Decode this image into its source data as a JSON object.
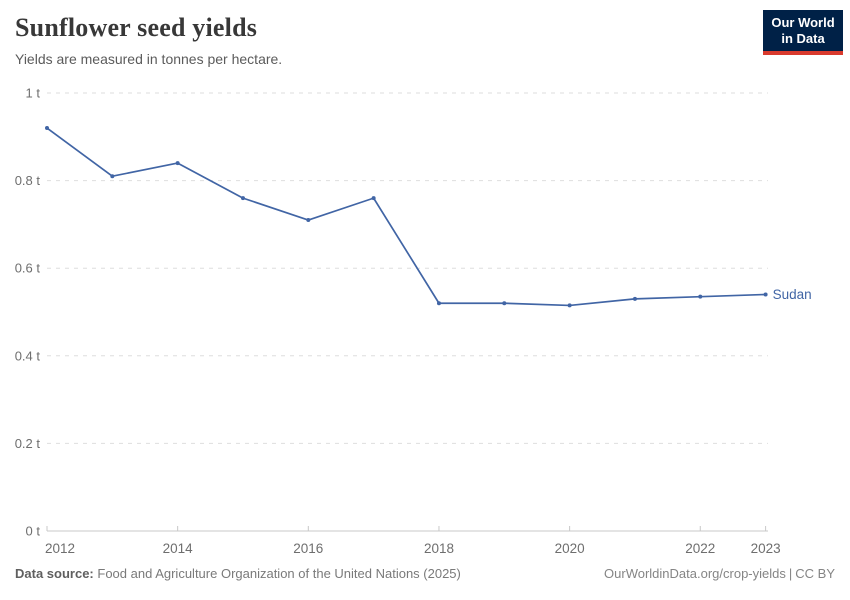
{
  "header": {
    "title": "Sunflower seed yields",
    "subtitle": "Yields are measured in tonnes per hectare.",
    "logo_line1": "Our World",
    "logo_line2": "in Data"
  },
  "chart_data": {
    "type": "line",
    "title": "Sunflower seed yields",
    "subtitle": "Yields are measured in tonnes per hectare.",
    "unit": "tonnes per hectare",
    "x": [
      2012,
      2013,
      2014,
      2015,
      2016,
      2017,
      2018,
      2019,
      2020,
      2021,
      2022,
      2023
    ],
    "series": [
      {
        "name": "Sudan",
        "values": [
          0.92,
          0.81,
          0.84,
          0.76,
          0.71,
          0.76,
          0.52,
          0.52,
          0.515,
          0.53,
          0.535,
          0.54
        ]
      }
    ],
    "xlim": [
      2012,
      2023
    ],
    "ylim": [
      0,
      1
    ],
    "yticks": [
      0,
      0.2,
      0.4,
      0.6,
      0.8,
      1
    ],
    "ytick_labels": [
      "0 t",
      "0.2 t",
      "0.4 t",
      "0.6 t",
      "0.8 t",
      "1 t"
    ],
    "xticks": [
      2012,
      2014,
      2016,
      2018,
      2020,
      2022,
      2023
    ],
    "xtick_labels": [
      "2012",
      "2014",
      "2016",
      "2018",
      "2020",
      "2022",
      "2023"
    ],
    "grid": "horizontal-dashed",
    "legend_position": "end-of-line"
  },
  "footer": {
    "source_label": "Data source:",
    "source_text": "Food and Agriculture Organization of the United Nations (2025)",
    "url": "OurWorldinData.org/crop-yields",
    "separator": "|",
    "license": "CC BY"
  },
  "colors": {
    "line": "#4165a5",
    "grid": "#dedede",
    "axis": "#c8c8c8",
    "axis_text": "#6e6e6e",
    "logo_bg": "#002147",
    "logo_accent": "#d93a2d"
  }
}
